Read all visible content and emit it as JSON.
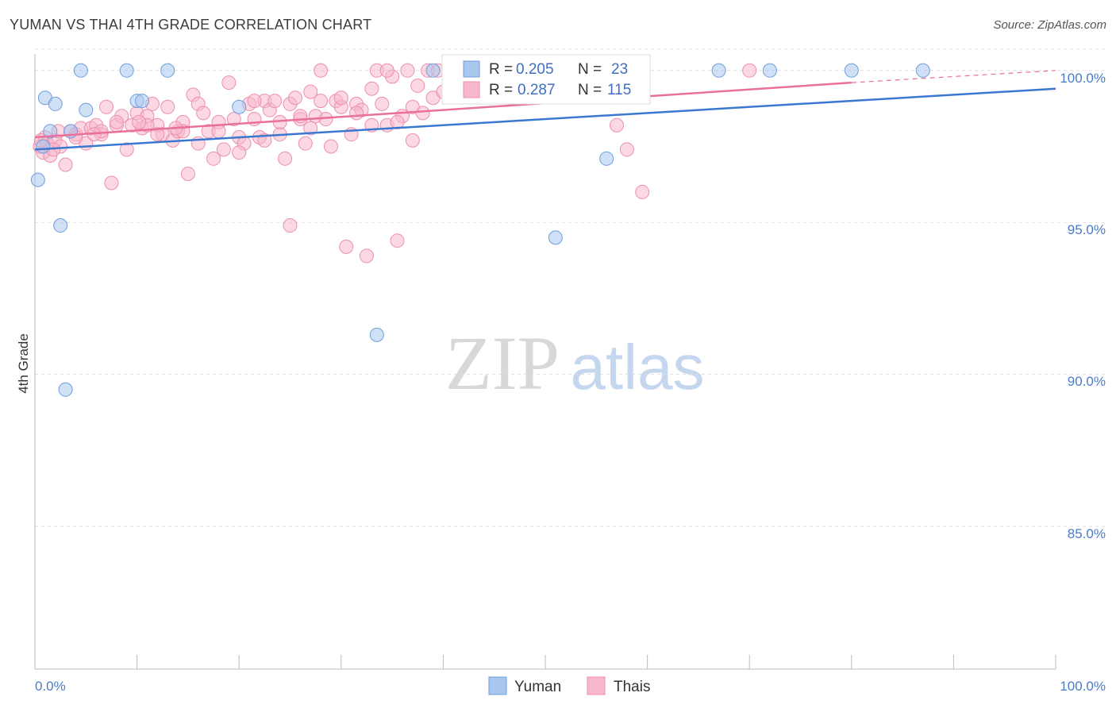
{
  "title": "YUMAN VS THAI 4TH GRADE CORRELATION CHART",
  "source": "Source: ZipAtlas.com",
  "watermark": {
    "zip": "ZIP",
    "atlas": "atlas"
  },
  "colors": {
    "yuman_fill": "#a9c6ef",
    "yuman_stroke": "#6f9fdc",
    "yuman_line": "#3a78d0",
    "thai_fill": "#f7b8cb",
    "thai_stroke": "#ec8fae",
    "thai_line": "#e8709a",
    "grid": "#dddddd",
    "axis_text": "#4a7cc8"
  },
  "stats_box": {
    "rows": [
      {
        "r_label": "R = ",
        "r_value": "0.205",
        "n_label": "N = ",
        "n_value": "23"
      },
      {
        "r_label": "R = ",
        "r_value": "0.287",
        "n_label": "N = ",
        "n_value": "115"
      }
    ]
  },
  "chart_data": {
    "type": "scatter",
    "title": "YUMAN VS THAI 4TH GRADE CORRELATION CHART",
    "xlabel": "",
    "ylabel": "4th Grade",
    "xlim": [
      0,
      100
    ],
    "ylim": [
      80.3,
      100.7
    ],
    "x_tick_labels": [
      "0.0%",
      "100.0%"
    ],
    "y_ticks": [
      85,
      90,
      95,
      100
    ],
    "y_tick_labels": [
      "85.0%",
      "90.0%",
      "95.0%",
      "100.0%"
    ],
    "grid": true,
    "legend_position": "bottom-center",
    "series": [
      {
        "name": "Yuman",
        "r": 0.205,
        "n": 23,
        "trend": {
          "x0": 0,
          "y0": 97.4,
          "x1": 100,
          "y1": 99.4
        },
        "points": [
          [
            0.3,
            96.4
          ],
          [
            1.0,
            99.1
          ],
          [
            1.5,
            98.0
          ],
          [
            2.0,
            98.9
          ],
          [
            2.5,
            94.9
          ],
          [
            3.0,
            89.5
          ],
          [
            3.5,
            98.0
          ],
          [
            4.5,
            100.0
          ],
          [
            5.0,
            98.7
          ],
          [
            9.0,
            100.0
          ],
          [
            10.0,
            99.0
          ],
          [
            10.5,
            99.0
          ],
          [
            13.0,
            100.0
          ],
          [
            20.0,
            98.8
          ],
          [
            33.5,
            91.3
          ],
          [
            39.0,
            100.0
          ],
          [
            51.0,
            94.5
          ],
          [
            56.0,
            97.1
          ],
          [
            67.0,
            100.0
          ],
          [
            72.0,
            100.0
          ],
          [
            80.0,
            100.0
          ],
          [
            87.0,
            100.0
          ],
          [
            0.8,
            97.5
          ]
        ]
      },
      {
        "name": "Thais",
        "r": 0.287,
        "n": 115,
        "trend": {
          "x0": 0,
          "y0": 97.8,
          "x1": 80,
          "y1": 99.6,
          "dash_to_x": 100,
          "dash_to_y": 100.0
        },
        "points": [
          [
            0.5,
            97.5
          ],
          [
            0.8,
            97.3
          ],
          [
            1.0,
            97.8
          ],
          [
            1.2,
            97.6
          ],
          [
            1.5,
            97.2
          ],
          [
            2.0,
            97.7
          ],
          [
            2.3,
            98.0
          ],
          [
            3.0,
            96.9
          ],
          [
            3.5,
            98.0
          ],
          [
            4.0,
            97.9
          ],
          [
            4.5,
            98.1
          ],
          [
            5.0,
            97.6
          ],
          [
            5.5,
            98.1
          ],
          [
            6.0,
            98.2
          ],
          [
            6.5,
            97.9
          ],
          [
            7.0,
            98.8
          ],
          [
            7.5,
            96.3
          ],
          [
            8.0,
            98.2
          ],
          [
            8.5,
            98.5
          ],
          [
            9.0,
            97.4
          ],
          [
            9.5,
            98.2
          ],
          [
            10.0,
            98.6
          ],
          [
            10.5,
            98.1
          ],
          [
            11.0,
            98.5
          ],
          [
            11.5,
            98.9
          ],
          [
            12.0,
            98.2
          ],
          [
            12.5,
            97.9
          ],
          [
            13.0,
            98.8
          ],
          [
            13.5,
            97.7
          ],
          [
            14.0,
            98.0
          ],
          [
            14.5,
            98.3
          ],
          [
            15.0,
            96.6
          ],
          [
            15.5,
            99.2
          ],
          [
            16.0,
            98.9
          ],
          [
            16.5,
            98.6
          ],
          [
            17.0,
            98.0
          ],
          [
            17.5,
            97.1
          ],
          [
            18.0,
            98.3
          ],
          [
            18.5,
            97.4
          ],
          [
            19.0,
            99.6
          ],
          [
            19.5,
            98.4
          ],
          [
            20.0,
            97.8
          ],
          [
            20.5,
            97.6
          ],
          [
            21.0,
            98.9
          ],
          [
            21.5,
            98.4
          ],
          [
            22.0,
            97.8
          ],
          [
            22.5,
            99.0
          ],
          [
            23.0,
            98.7
          ],
          [
            23.5,
            99.0
          ],
          [
            24.0,
            97.9
          ],
          [
            24.5,
            97.1
          ],
          [
            25.0,
            98.9
          ],
          [
            25.5,
            99.1
          ],
          [
            26.0,
            98.4
          ],
          [
            26.5,
            97.6
          ],
          [
            27.0,
            99.3
          ],
          [
            27.5,
            98.5
          ],
          [
            28.0,
            100.0
          ],
          [
            28.5,
            98.4
          ],
          [
            29.0,
            97.5
          ],
          [
            29.5,
            99.0
          ],
          [
            30.0,
            98.8
          ],
          [
            30.5,
            94.2
          ],
          [
            31.0,
            97.9
          ],
          [
            31.5,
            98.9
          ],
          [
            32.0,
            98.7
          ],
          [
            32.5,
            93.9
          ],
          [
            33.0,
            99.4
          ],
          [
            33.5,
            100.0
          ],
          [
            34.0,
            98.9
          ],
          [
            34.5,
            98.2
          ],
          [
            35.0,
            99.8
          ],
          [
            35.5,
            94.4
          ],
          [
            36.0,
            98.5
          ],
          [
            36.5,
            100.0
          ],
          [
            37.0,
            97.7
          ],
          [
            37.5,
            99.5
          ],
          [
            38.0,
            98.6
          ],
          [
            38.5,
            100.0
          ],
          [
            39.0,
            99.1
          ],
          [
            39.5,
            100.0
          ],
          [
            40.0,
            99.3
          ],
          [
            25.0,
            94.9
          ],
          [
            41.5,
            100.0
          ],
          [
            57.0,
            98.2
          ],
          [
            58.0,
            97.4
          ],
          [
            59.5,
            96.0
          ],
          [
            70.0,
            100.0
          ],
          [
            12.0,
            97.9
          ],
          [
            14.5,
            98.0
          ],
          [
            6.5,
            98.0
          ],
          [
            11.0,
            98.2
          ],
          [
            4.0,
            97.8
          ],
          [
            18.0,
            98.0
          ],
          [
            22.5,
            97.7
          ],
          [
            26.0,
            98.5
          ],
          [
            28.0,
            99.0
          ],
          [
            30.0,
            99.1
          ],
          [
            33.0,
            98.2
          ],
          [
            34.5,
            100.0
          ],
          [
            24.0,
            98.3
          ],
          [
            20.0,
            97.3
          ],
          [
            16.0,
            97.6
          ],
          [
            8.0,
            98.3
          ],
          [
            2.5,
            97.5
          ],
          [
            1.8,
            97.4
          ],
          [
            5.8,
            97.9
          ],
          [
            10.2,
            98.3
          ],
          [
            13.8,
            98.1
          ],
          [
            21.5,
            99.0
          ],
          [
            27.0,
            98.1
          ],
          [
            31.5,
            98.6
          ],
          [
            35.5,
            98.3
          ],
          [
            37.0,
            98.8
          ],
          [
            0.6,
            97.7
          ]
        ]
      }
    ]
  }
}
